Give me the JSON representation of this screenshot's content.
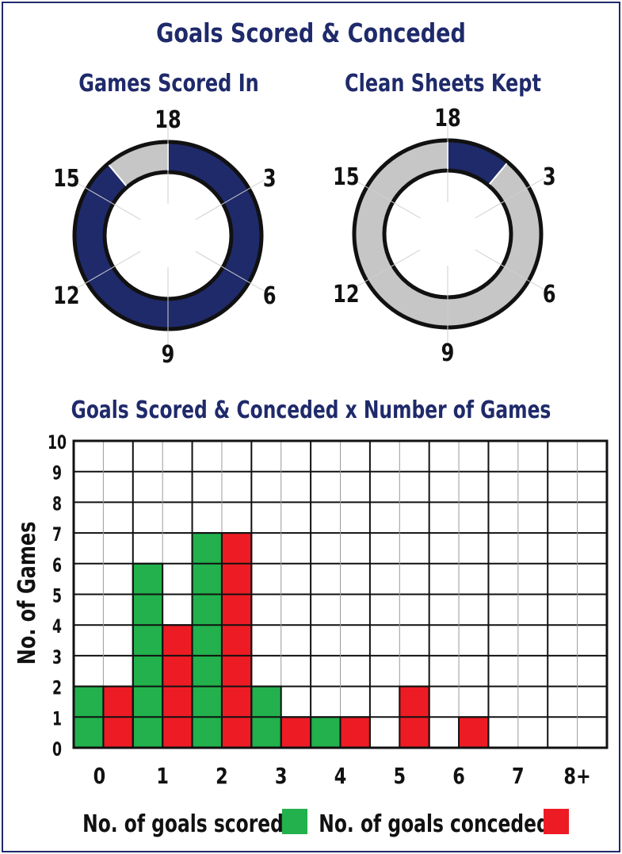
{
  "title": "Goals Scored & Conceded",
  "colors": {
    "navy": "#1f2a6b",
    "grey": "#c6c6c6",
    "scored": "#22b14c",
    "conceded": "#ed1c24"
  },
  "chart_data": [
    {
      "type": "pie",
      "title": "Games Scored In",
      "total": 18,
      "values": [
        16
      ],
      "remainder": 2,
      "tick_labels": [
        "18",
        "3",
        "6",
        "9",
        "12",
        "15"
      ]
    },
    {
      "type": "pie",
      "title": "Clean Sheets Kept",
      "total": 18,
      "values": [
        2
      ],
      "remainder": 16,
      "tick_labels": [
        "18",
        "3",
        "6",
        "9",
        "12",
        "15"
      ]
    },
    {
      "type": "bar",
      "title": "Goals Scored & Conceded x Number of Games",
      "categories": [
        "0",
        "1",
        "2",
        "3",
        "4",
        "5",
        "6",
        "7",
        "8+"
      ],
      "series": [
        {
          "name": "No. of goals scored",
          "values": [
            2,
            6,
            7,
            2,
            1,
            0,
            0,
            0,
            0
          ]
        },
        {
          "name": "No. of goals conceded",
          "values": [
            2,
            4,
            7,
            1,
            1,
            2,
            1,
            0,
            0
          ]
        }
      ],
      "xlabel": "",
      "ylabel": "No. of Games",
      "ylim": [
        0,
        10
      ],
      "y_ticks": [
        "0",
        "1",
        "2",
        "3",
        "4",
        "5",
        "6",
        "7",
        "8",
        "9",
        "10"
      ],
      "grid": true,
      "legend_position": "bottom"
    }
  ]
}
